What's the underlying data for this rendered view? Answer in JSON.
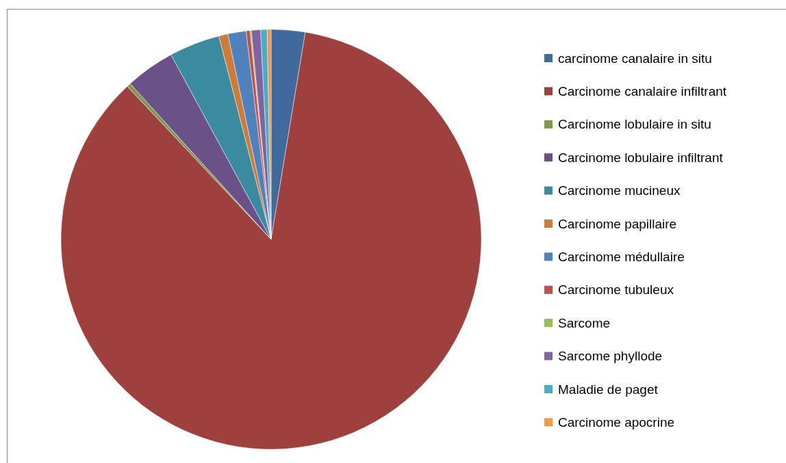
{
  "chart_data": {
    "type": "pie",
    "categories": [
      "carcinome canalaire in situ",
      "Carcinome canalaire infiltrant",
      "Carcinome lobulaire in situ",
      "Carcinome lobulaire infiltrant",
      "Carcinome mucineux",
      "Carcinome papillaire",
      "Carcinome médullaire",
      "Carcinome tubuleux",
      "Sarcome",
      "Sarcome phyllode",
      "Maladie de paget",
      "Carcinome apocrine"
    ],
    "values": [
      2.6,
      85.4,
      0.3,
      3.8,
      3.9,
      0.7,
      1.4,
      0.3,
      0.1,
      0.7,
      0.5,
      0.3
    ],
    "colors": [
      "#40699c",
      "#9e413e",
      "#7f9a48",
      "#6a5187",
      "#3b8ba0",
      "#cc7b38",
      "#4f81bd",
      "#c0504d",
      "#9bbb59",
      "#8064a2",
      "#4bacc6",
      "#f79646"
    ],
    "legend": "right"
  }
}
